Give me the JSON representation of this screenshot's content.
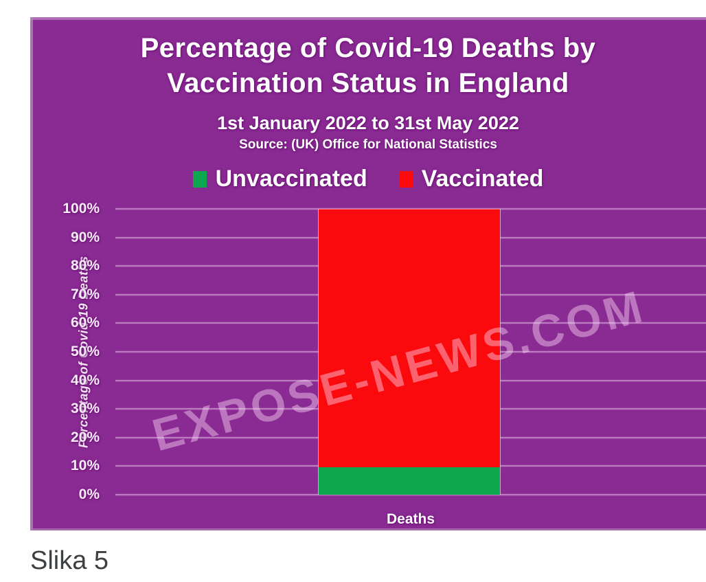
{
  "page": {
    "background": "#ffffff"
  },
  "caption": "Slika 5",
  "figure": {
    "background_color": "#8a2a93",
    "watermark": "EXPOSE-NEWS.COM"
  },
  "chart_data": {
    "type": "bar",
    "stacked": true,
    "title": [
      "Percentage of Covid-19 Deaths by",
      "Vaccination Status in England"
    ],
    "subtitle": "1st January 2022 to 31st May 2022",
    "source": "Source:  (UK) Office for National Statistics",
    "categories": [
      "Deaths"
    ],
    "series": [
      {
        "name": "Unvaccinated",
        "color": "#0da750",
        "values": [
          9.5
        ]
      },
      {
        "name": "Vaccinated",
        "color": "#fa0a0d",
        "values": [
          90.5
        ]
      }
    ],
    "xlabel": "Deaths",
    "ylabel": "Percentage of Covid-19 Deaths",
    "ylim": [
      0,
      100
    ],
    "yticks": [
      "100%",
      "90%",
      "80%",
      "70%",
      "60%",
      "50%",
      "40%",
      "30%",
      "20%",
      "10%",
      "0%"
    ],
    "grid": true,
    "legend_position": "top",
    "watermark": "EXPOSE-NEWS.COM"
  }
}
